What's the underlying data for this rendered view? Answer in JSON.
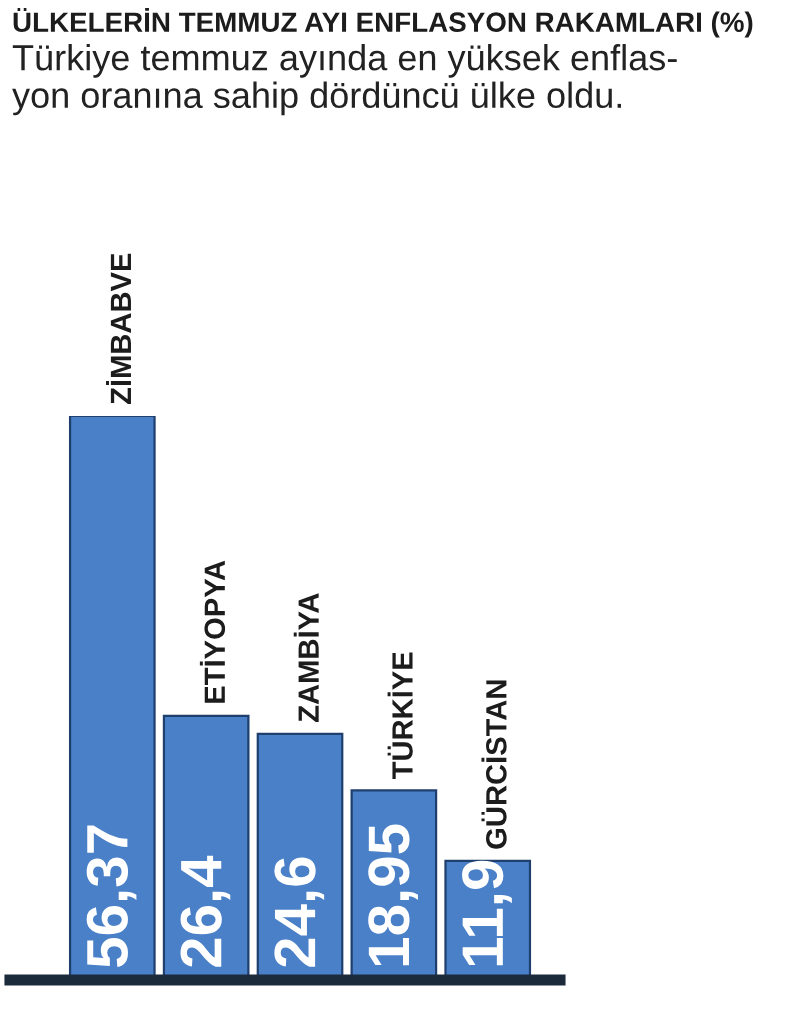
{
  "chart_data": {
    "type": "bar",
    "title": "ÜLKELERİN TEMMUZ AYI ENFLASYON RAKAMLARI (%)",
    "subtitle": "Türkiye temmuz ayında en yüksek enflas-\nyon oranına sahip dördüncü ülke oldu.",
    "categories": [
      "ZİMBABVE",
      "ETİYOPYA",
      "ZAMBİYA",
      "TÜRKİYE",
      "GÜRCİSTAN"
    ],
    "values": [
      56.37,
      26.4,
      24.6,
      18.95,
      11.9
    ],
    "value_labels": [
      "56,37",
      "26,4",
      "24,6",
      "18,95",
      "11,9"
    ],
    "color": "#4a80c8"
  }
}
